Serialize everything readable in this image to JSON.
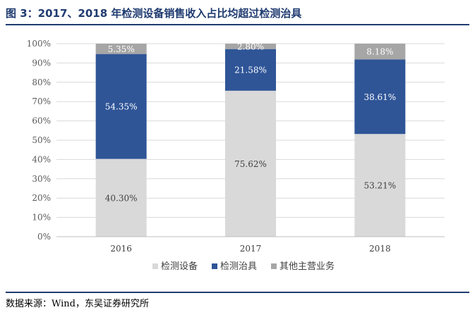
{
  "figure": {
    "title": "图 3：2017、2018 年检测设备销售收入占比均超过检测治具",
    "source": "数据来源：Wind，东吴证券研究所"
  },
  "chart_data": {
    "type": "bar",
    "stacked": true,
    "categories": [
      "2016",
      "2017",
      "2018"
    ],
    "series": [
      {
        "name": "检测设备",
        "color": "#d9d9d9",
        "values": [
          40.3,
          75.62,
          53.21
        ],
        "labels": [
          "40.30%",
          "75.62%",
          "53.21%"
        ],
        "label_color": "#404040"
      },
      {
        "name": "检测治具",
        "color": "#2f5597",
        "values": [
          54.35,
          21.58,
          38.61
        ],
        "labels": [
          "54.35%",
          "21.58%",
          "38.61%"
        ],
        "label_color": "#ffffff"
      },
      {
        "name": "其他主营业务",
        "color": "#a6a6a6",
        "values": [
          5.35,
          2.8,
          8.18
        ],
        "labels": [
          "5.35%",
          "2.80%",
          "8.18%"
        ],
        "label_color": "#ffffff"
      }
    ],
    "y_ticks": [
      "0%",
      "10%",
      "20%",
      "30%",
      "40%",
      "50%",
      "60%",
      "70%",
      "80%",
      "90%",
      "100%"
    ],
    "ylim": [
      0,
      100
    ],
    "grid": true,
    "legend_position": "bottom",
    "xlabel": "",
    "ylabel": ""
  }
}
